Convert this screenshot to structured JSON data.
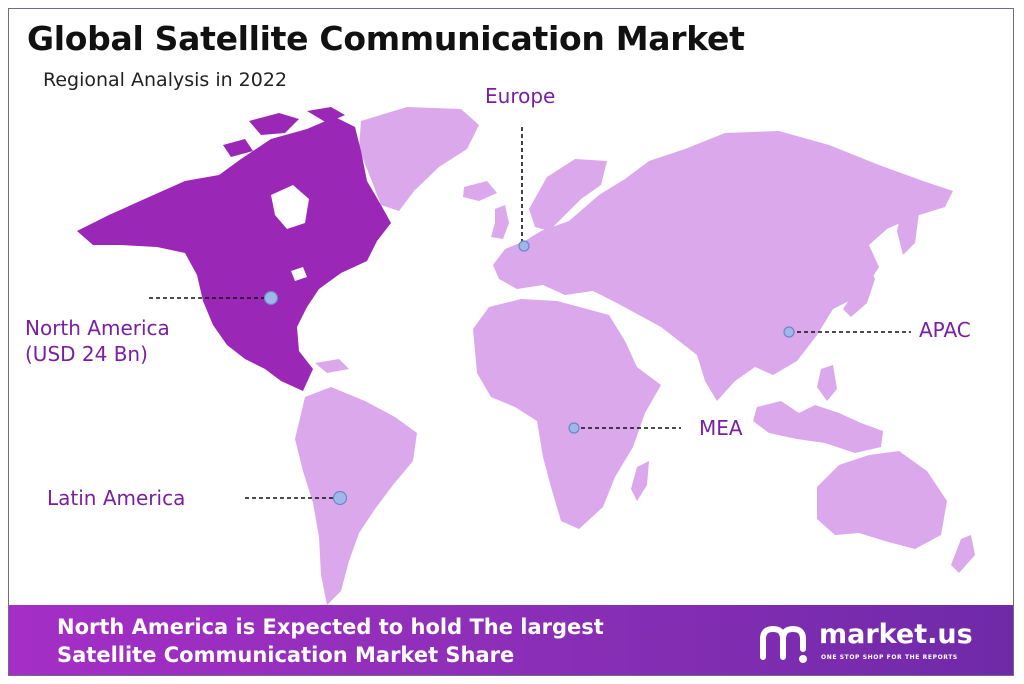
{
  "header": {
    "title": "Global Satellite Communication Market",
    "subtitle": "Regional Analysis in 2022"
  },
  "regions": {
    "europe": {
      "label": "Europe"
    },
    "north_america": {
      "label": "North America",
      "value": "(USD 24 Bn)"
    },
    "apac": {
      "label": "APAC"
    },
    "mea": {
      "label": "MEA"
    },
    "latin_america": {
      "label": "Latin America"
    }
  },
  "highlight_region": "North America",
  "colors": {
    "highlight_land": "#9a27b5",
    "other_land": "#dba8ec",
    "label_text": "#7a1fa2",
    "marker": "#9fb8ea",
    "banner": "#8f2fb9"
  },
  "banner": {
    "line1": "North America is Expected to hold The largest",
    "line2": "Satellite Communication Market Share"
  },
  "brand": {
    "logo_icon": "market-us-logo-icon",
    "name": "market.us",
    "tagline": "ONE STOP SHOP FOR THE REPORTS"
  }
}
